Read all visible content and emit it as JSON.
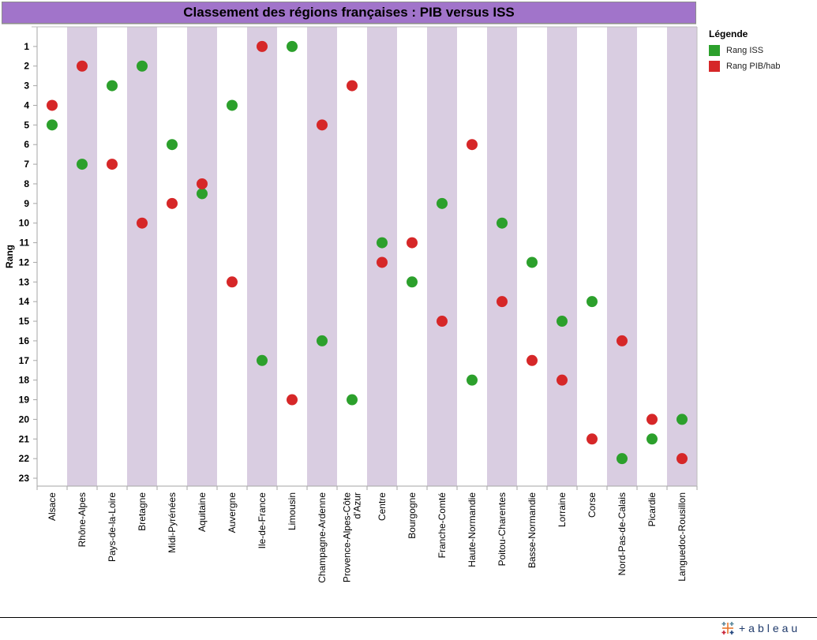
{
  "chart_data": {
    "type": "scatter",
    "title": "Classement des régions françaises : PIB versus ISS",
    "xlabel": "",
    "ylabel": "Rang",
    "ylim": [
      0,
      23.4
    ],
    "y_inverted": true,
    "y_ticks": [
      1,
      2,
      3,
      4,
      5,
      6,
      7,
      8,
      9,
      10,
      11,
      12,
      13,
      14,
      15,
      16,
      17,
      18,
      19,
      20,
      21,
      22,
      23
    ],
    "grid": false,
    "categories": [
      "Alsace",
      "Rhône-Alpes",
      "Pays-de-la-Loire",
      "Bretagne",
      "Midi-Pyrénées",
      "Aquitaine",
      "Auvergne",
      "Ile-de-France",
      "Limousin",
      "Champagne-Ardenne",
      "Provence-Alpes-Côte d'Azur",
      "Centre",
      "Bourgogne",
      "Franche-Comté",
      "Haute-Normandie",
      "Poitou-Charentes",
      "Basse-Normandie",
      "Lorraine",
      "Corse",
      "Nord-Pas-de-Calais",
      "Picardie",
      "Languedoc-Rousillon"
    ],
    "category_label_lines": [
      [
        "Alsace"
      ],
      [
        "Rhône-Alpes"
      ],
      [
        "Pays-de-la-Loire"
      ],
      [
        "Bretagne"
      ],
      [
        "Midi-Pyrénées"
      ],
      [
        "Aquitaine"
      ],
      [
        "Auvergne"
      ],
      [
        "Ile-de-France"
      ],
      [
        "Limousin"
      ],
      [
        "Champagne-Ardenne"
      ],
      [
        "Provence-Alpes-Côte",
        "d'Azur"
      ],
      [
        "Centre"
      ],
      [
        "Bourgogne"
      ],
      [
        "Franche-Comté"
      ],
      [
        "Haute-Normandie"
      ],
      [
        "Poitou-Charentes"
      ],
      [
        "Basse-Normandie"
      ],
      [
        "Lorraine"
      ],
      [
        "Corse"
      ],
      [
        "Nord-Pas-de-Calais"
      ],
      [
        "Picardie"
      ],
      [
        "Languedoc-Rousillon"
      ]
    ],
    "series": [
      {
        "name": "Rang ISS",
        "color": "#2ca02c",
        "values": [
          5,
          7,
          3,
          2,
          6,
          8.5,
          4,
          17,
          1,
          16,
          19,
          11,
          13,
          9,
          18,
          10,
          12,
          15,
          14,
          22,
          21,
          20
        ]
      },
      {
        "name": "Rang PIB/hab",
        "color": "#d62728",
        "values": [
          4,
          2,
          7,
          10,
          9,
          8,
          13,
          1,
          19,
          5,
          3,
          12,
          11,
          15,
          6,
          14,
          17,
          18,
          21,
          16,
          20,
          22
        ]
      }
    ],
    "legend": {
      "title": "Légende",
      "position": "right"
    },
    "band_colors": {
      "odd": "#ffffff",
      "even": "#d9cde1"
    }
  },
  "footer": {
    "brand": "+ableau"
  }
}
